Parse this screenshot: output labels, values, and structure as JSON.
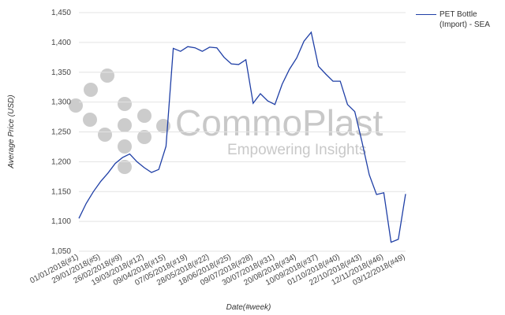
{
  "chart_data": {
    "type": "line",
    "xlabel": "Date(#week)",
    "ylabel": "Average Price (USD)",
    "watermark": {
      "title": "CommoPlast",
      "tagline": "Empowering Insights"
    },
    "categories": [
      "01/01/2018(#1)",
      null,
      null,
      "29/01/2018(#5)",
      null,
      null,
      "26/02/2018(#9)",
      null,
      null,
      "19/03/2018(#12)",
      null,
      null,
      "09/04/2018(#15)",
      null,
      null,
      "07/05/2018(#19)",
      null,
      null,
      "28/05/2018(#22)",
      null,
      null,
      "18/06/2018(#25)",
      null,
      null,
      "09/07/2018(#28)",
      null,
      null,
      "30/07/2018(#31)",
      null,
      null,
      "20/08/2018(#34)",
      null,
      null,
      "10/09/2018(#37)",
      null,
      null,
      "01/10/2018(#40)",
      null,
      null,
      "22/10/2018(#43)",
      null,
      null,
      "12/11/2018(#46)",
      null,
      null,
      "03/12/2018(#49)"
    ],
    "series": [
      {
        "name": "PET Bottle (Import) - SEA",
        "color": "#1f3fa6",
        "values": [
          1105,
          1130,
          1150,
          1167,
          1181,
          1197,
          1207,
          1213,
          1200,
          1190,
          1182,
          1187,
          1226,
          1390,
          1385,
          1393,
          1391,
          1385,
          1392,
          1391,
          1375,
          1364,
          1363,
          1371,
          1298,
          1314,
          1302,
          1296,
          1330,
          1355,
          1374,
          1402,
          1417,
          1360,
          1347,
          1335,
          1335,
          1296,
          1284,
          1233,
          1178,
          1145,
          1148,
          1065,
          1070,
          1146
        ]
      }
    ],
    "ylim": [
      1050,
      1450
    ],
    "yticks": [
      {
        "value": 1050,
        "label": "1,050"
      },
      {
        "value": 1100,
        "label": "1,100"
      },
      {
        "value": 1150,
        "label": "1,150"
      },
      {
        "value": 1200,
        "label": "1,200"
      },
      {
        "value": 1250,
        "label": "1,250"
      },
      {
        "value": 1300,
        "label": "1,300"
      },
      {
        "value": 1350,
        "label": "1,350"
      },
      {
        "value": 1400,
        "label": "1,400"
      },
      {
        "value": 1450,
        "label": "1,450"
      }
    ],
    "grid": true
  }
}
